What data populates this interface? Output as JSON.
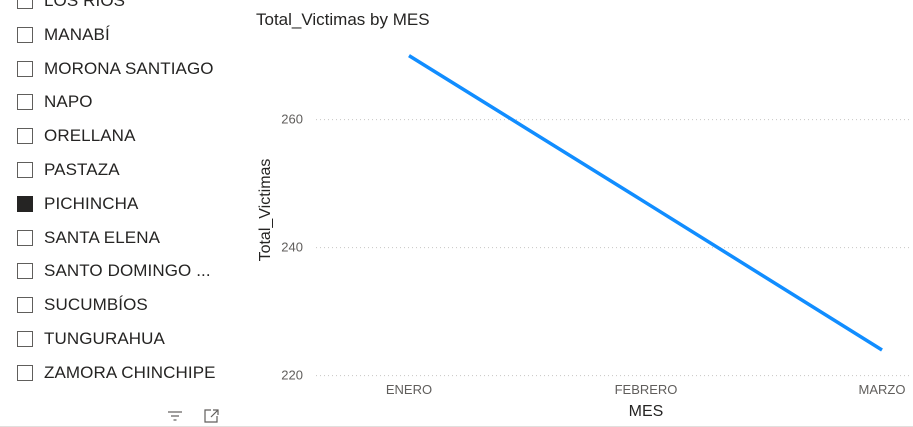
{
  "slicer": {
    "items": [
      {
        "label": "LOS RÍOS",
        "checked": false
      },
      {
        "label": "MANABÍ",
        "checked": false
      },
      {
        "label": "MORONA SANTIAGO",
        "checked": false
      },
      {
        "label": "NAPO",
        "checked": false
      },
      {
        "label": "ORELLANA",
        "checked": false
      },
      {
        "label": "PASTAZA",
        "checked": false
      },
      {
        "label": "PICHINCHA",
        "checked": true
      },
      {
        "label": "SANTA ELENA",
        "checked": false
      },
      {
        "label": "SANTO DOMINGO ...",
        "checked": false
      },
      {
        "label": "SUCUMBÍOS",
        "checked": false
      },
      {
        "label": "TUNGURAHUA",
        "checked": false
      },
      {
        "label": "ZAMORA CHINCHIPE",
        "checked": false
      }
    ],
    "footer_icons": [
      "filter-lines-icon",
      "focus-mode-icon"
    ]
  },
  "chart_data": {
    "type": "line",
    "title": "Total_Victimas by MES",
    "xlabel": "MES",
    "ylabel": "Total_Victimas",
    "categories": [
      "ENERO",
      "FEBRERO",
      "MARZO"
    ],
    "series": [
      {
        "values": [
          270,
          247,
          224
        ],
        "color": "#118dff"
      }
    ],
    "yticks": [
      220,
      240,
      260
    ],
    "ylim": [
      219,
      274
    ],
    "grid": true,
    "gridline_color": "#c8c6c4",
    "text_color": "#605e5c"
  }
}
